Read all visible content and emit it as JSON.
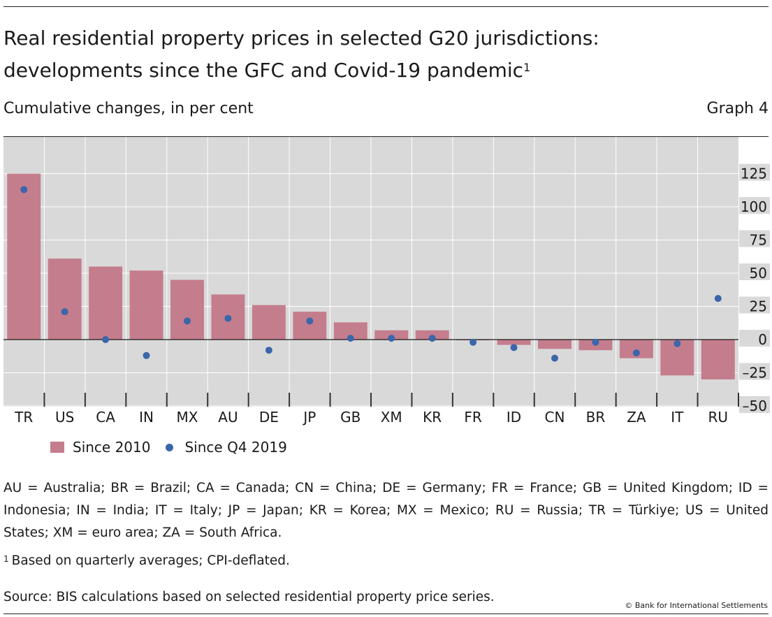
{
  "header": {
    "title_line1": "Real residential property prices in selected G20 jurisdictions:",
    "title_line2": "developments since the GFC and Covid-19 pandemic",
    "title_footnote_mark": "1",
    "subtitle": "Cumulative changes, in per cent",
    "graph_label": "Graph 4"
  },
  "legend": {
    "bar_label": "Since 2010",
    "dot_label": "Since Q4 2019"
  },
  "notes": {
    "abbreviations": "AU = Australia; BR = Brazil; CA = Canada; CN = China; DE = Germany; FR = France; GB = United Kingdom; ID = Indonesia; IN = India; IT = Italy; JP = Japan; KR = Korea; MX = Mexico; RU = Russia; TR = Türkiye; US = United States; XM = euro area; ZA = South Africa.",
    "footnote_mark": "1",
    "footnote": "Based on quarterly averages; CPI-deflated.",
    "source": "Source: BIS calculations based on selected residential property price series.",
    "copyright": "© Bank for International Settlements"
  },
  "colors": {
    "bar": "#c47d8d",
    "dot": "#3a66aa",
    "plot_background": "#d9d9d9",
    "gridline": "#ffffff"
  },
  "chart_data": {
    "type": "bar",
    "categories": [
      "TR",
      "US",
      "CA",
      "IN",
      "MX",
      "AU",
      "DE",
      "JP",
      "GB",
      "XM",
      "KR",
      "FR",
      "ID",
      "CN",
      "BR",
      "ZA",
      "IT",
      "RU"
    ],
    "series": [
      {
        "name": "Since 2010",
        "kind": "bar",
        "values": [
          125,
          61,
          55,
          52,
          45,
          34,
          26,
          21,
          13,
          7,
          7,
          0,
          -4,
          -7,
          -8,
          -14,
          -27,
          -30
        ]
      },
      {
        "name": "Since Q4 2019",
        "kind": "dot",
        "values": [
          113,
          21,
          0,
          -12,
          14,
          16,
          -8,
          14,
          1,
          1,
          1,
          -2,
          -6,
          -14,
          -2,
          -10,
          -3,
          31
        ]
      }
    ],
    "y_ticks": [
      125,
      100,
      75,
      50,
      25,
      0,
      -25,
      -50
    ],
    "y_tick_labels": [
      "125",
      "100",
      "75",
      "50",
      "25",
      "0",
      "–25",
      "–50"
    ],
    "ylim": [
      -52,
      152
    ],
    "y_axis_side": "right",
    "grid": true,
    "legend_position": "bottom-left"
  }
}
